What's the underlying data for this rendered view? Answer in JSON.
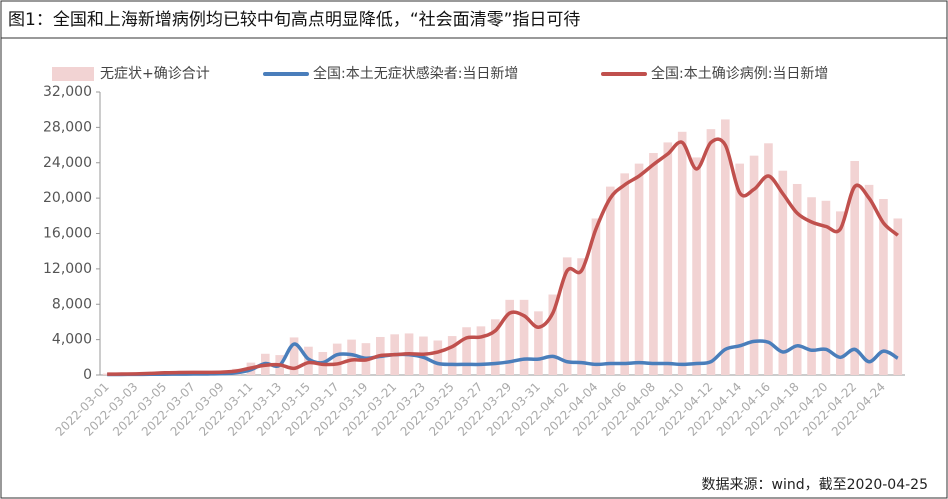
{
  "chart_data": {
    "type": "bar",
    "title": "图1：全国和上海新增病例均已较中旬高点明显降低，“社会面清零”指日可待",
    "source": "数据来源：wind，截至2020-04-25",
    "categories": [
      "2022-03-01",
      null,
      "2022-03-03",
      null,
      "2022-03-05",
      null,
      "2022-03-07",
      null,
      "2022-03-09",
      null,
      "2022-03-11",
      null,
      "2022-03-13",
      null,
      "2022-03-15",
      null,
      "2022-03-17",
      null,
      "2022-03-19",
      null,
      "2022-03-21",
      null,
      "2022-03-23",
      null,
      "2022-03-25",
      null,
      "2022-03-27",
      null,
      "2022-03-29",
      null,
      "2022-03-31",
      null,
      "2022-04-02",
      null,
      "2022-04-04",
      null,
      "2022-04-06",
      null,
      "2022-04-08",
      null,
      "2022-04-10",
      null,
      "2022-04-12",
      null,
      "2022-04-14",
      null,
      "2022-04-16",
      null,
      "2022-04-18",
      null,
      "2022-04-20",
      null,
      "2022-04-22",
      null,
      "2022-04-24",
      null
    ],
    "series": [
      {
        "name": "无症状+确诊合计",
        "type": "bar",
        "color": "#f2d3d3",
        "values": [
          150,
          170,
          200,
          260,
          340,
          380,
          410,
          420,
          470,
          700,
          1400,
          2400,
          2250,
          4250,
          3200,
          2600,
          3550,
          4000,
          3600,
          4300,
          4600,
          4700,
          4350,
          3900,
          4400,
          5400,
          5500,
          6300,
          8500,
          8500,
          7200,
          9100,
          13300,
          13200,
          17700,
          21300,
          22800,
          23900,
          25100,
          26300,
          27500,
          24600,
          27800,
          28900,
          23900,
          24800,
          26200,
          23100,
          21600,
          20100,
          19700,
          18500,
          24200,
          21500,
          19900,
          17700
        ]
      },
      {
        "name": "全国:本土无症状感染者:当日新增",
        "type": "line",
        "color": "#4a7ebb",
        "values": [
          50,
          60,
          70,
          80,
          90,
          100,
          110,
          120,
          150,
          250,
          600,
          1300,
          1100,
          3500,
          1800,
          1400,
          2300,
          2300,
          1900,
          2100,
          2300,
          2300,
          2000,
          1300,
          1200,
          1200,
          1200,
          1300,
          1500,
          1800,
          1800,
          2100,
          1500,
          1400,
          1200,
          1300,
          1300,
          1400,
          1300,
          1300,
          1200,
          1300,
          1500,
          2900,
          3300,
          3800,
          3700,
          2600,
          3300,
          2800,
          2900,
          2000,
          2900,
          1500,
          2700,
          1900
        ]
      },
      {
        "name": "全国:本土确诊病例:当日新增",
        "type": "line",
        "color": "#c0504d",
        "values": [
          100,
          110,
          130,
          180,
          250,
          280,
          300,
          300,
          320,
          450,
          800,
          1100,
          1150,
          750,
          1400,
          1200,
          1250,
          1700,
          1700,
          2200,
          2300,
          2400,
          2350,
          2600,
          3200,
          4200,
          4300,
          5000,
          7000,
          6700,
          5400,
          7000,
          11800,
          11800,
          16500,
          20000,
          21500,
          22500,
          23800,
          25000,
          26300,
          23300,
          26300,
          26000,
          20600,
          21000,
          22500,
          20500,
          18300,
          17300,
          16800,
          16500,
          21300,
          20000,
          17200,
          15800
        ]
      }
    ],
    "ylim": [
      0,
      32000
    ],
    "yticks": [
      0,
      {
        "value": 4000,
        "label": "4,000"
      },
      {
        "value": 8000,
        "label": "8,000"
      },
      {
        "value": 12000,
        "label": "12,000"
      },
      {
        "value": 16000,
        "label": "16,000"
      },
      {
        "value": 20000,
        "label": "20,000"
      },
      {
        "value": 24000,
        "label": "24,000"
      },
      {
        "value": 28000,
        "label": "28,000"
      },
      {
        "value": 32000,
        "label": "32,000"
      }
    ],
    "legend": "top"
  }
}
